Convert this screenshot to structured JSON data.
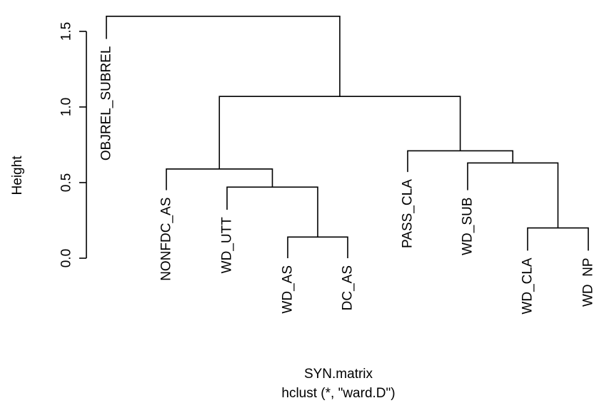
{
  "chart_data": {
    "type": "dendrogram",
    "xlabel": "SYN.matrix",
    "sublabel": "hclust (*, \"ward.D\")",
    "ylabel": "Height",
    "ylim": [
      0,
      1.6
    ],
    "yticks": [
      0.0,
      0.5,
      1.0,
      1.5
    ],
    "ytick_labels": [
      "0.0",
      "0.5",
      "1.0",
      "1.5"
    ],
    "leaves": [
      {
        "label": "OBJREL_SUBREL",
        "height": 1.45
      },
      {
        "label": "NONFDC_AS",
        "height": 0.45
      },
      {
        "label": "WD_UTT",
        "height": 0.32
      },
      {
        "label": "WD_AS",
        "height": 0.0
      },
      {
        "label": "DC_AS",
        "height": 0.0
      },
      {
        "label": "PASS_CLA",
        "height": 0.57
      },
      {
        "label": "WD_SUB",
        "height": 0.45
      },
      {
        "label": "WD_CLA",
        "height": 0.05
      },
      {
        "label": "WD_NP",
        "height": 0.05
      }
    ],
    "merges": [
      {
        "left": "WD_AS",
        "right": "DC_AS",
        "height": 0.14
      },
      {
        "left": "WD_UTT",
        "right": "WD_AS+DC_AS",
        "height": 0.47
      },
      {
        "left": "NONFDC_AS",
        "right": "WD_UTT+WD_AS+DC_AS",
        "height": 0.59
      },
      {
        "left": "WD_CLA",
        "right": "WD_NP",
        "height": 0.2
      },
      {
        "left": "WD_SUB",
        "right": "WD_CLA+WD_NP",
        "height": 0.63
      },
      {
        "left": "PASS_CLA",
        "right": "WD_SUB+WD_CLA+WD_NP",
        "height": 0.71
      },
      {
        "left": "NONFDC_AS group",
        "right": "PASS_CLA group",
        "height": 1.07
      },
      {
        "left": "OBJREL_SUBREL",
        "right": "rest",
        "height": 1.6
      }
    ]
  }
}
